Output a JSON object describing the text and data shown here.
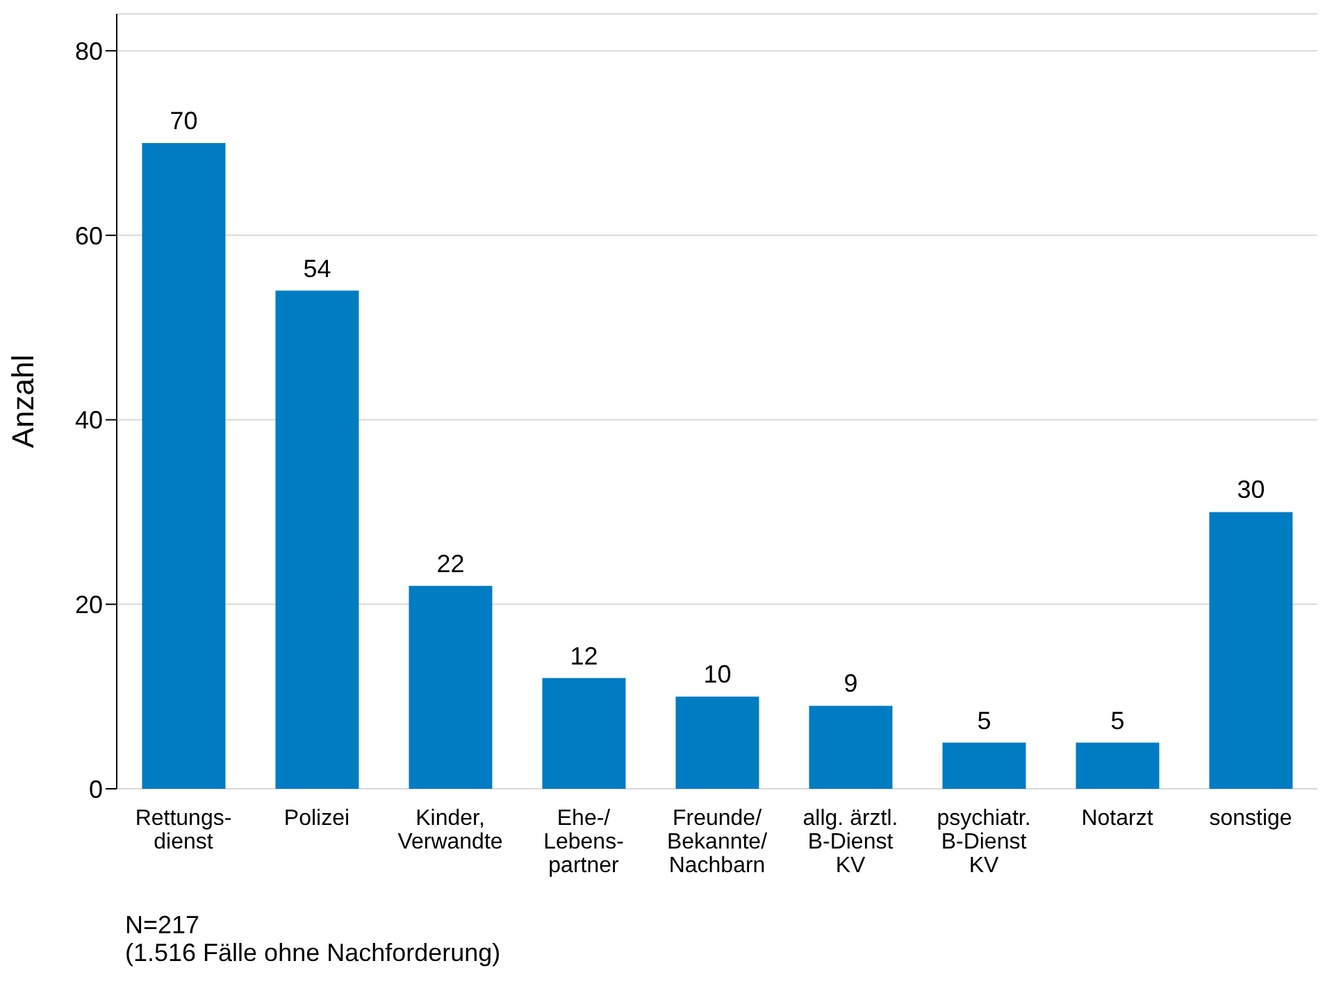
{
  "chart_data": {
    "type": "bar",
    "ylabel": "Anzahl",
    "categories": [
      "Rettungs-\ndienst",
      "Polizei",
      "Kinder,\nVerwandte",
      "Ehe-/\nLebens-\npartner",
      "Freunde/\nBekannte/\nNachbarn",
      "allg. ärztl.\nB-Dienst\nKV",
      "psychiatr.\nB-Dienst\nKV",
      "Notarzt",
      "sonstige"
    ],
    "values": [
      70,
      54,
      22,
      12,
      10,
      9,
      5,
      5,
      30
    ],
    "color": "#007cc3",
    "ylim": [
      0,
      84
    ],
    "yticks": [
      0,
      20,
      40,
      60,
      80
    ],
    "grid": "y",
    "data_labels": true,
    "legend": false,
    "annotations": [
      "N=217",
      "(1.516 Fälle ohne Nachforderung)"
    ]
  }
}
